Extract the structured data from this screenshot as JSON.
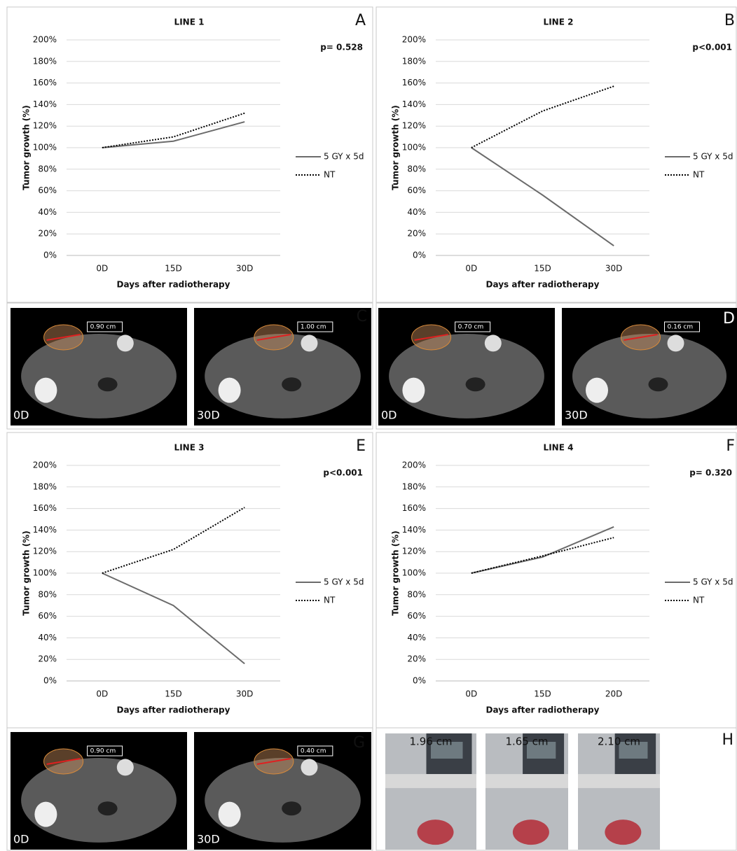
{
  "chart_data": [
    {
      "type": "line",
      "title": "LINE 1",
      "panel_label": "A",
      "annotation": "p= 0.528",
      "xlabel": "Days after radiotherapy",
      "ylabel": "Tumor growth (%)",
      "categories": [
        "0D",
        "15D",
        "30D"
      ],
      "series": [
        {
          "name": "5 GY x 5d",
          "color": "#6b6b6b",
          "line_style": "solid",
          "values": [
            100,
            106,
            124
          ]
        },
        {
          "name": "NT",
          "color": "#000000",
          "line_style": "dotted",
          "values": [
            100,
            110,
            132
          ]
        }
      ],
      "ylim": [
        0,
        200
      ],
      "yticks": [
        {
          "value": 0,
          "label": "0%"
        },
        {
          "value": 20,
          "label": "20%"
        },
        {
          "value": 40,
          "label": "40%"
        },
        {
          "value": 60,
          "label": "60%"
        },
        {
          "value": 80,
          "label": "80%"
        },
        {
          "value": 100,
          "label": "100%"
        },
        {
          "value": 120,
          "label": "120%"
        },
        {
          "value": 140,
          "label": "140%"
        },
        {
          "value": 160,
          "label": "160%"
        },
        {
          "value": 180,
          "label": "180%"
        },
        {
          "value": 200,
          "label": "200%"
        }
      ],
      "grid": true,
      "legend": "right"
    },
    {
      "type": "line",
      "title": "LINE 2",
      "panel_label": "B",
      "annotation": "p<0.001",
      "xlabel": "Days after radiotherapy",
      "ylabel": "Tumor growth (%)",
      "categories": [
        "0D",
        "15D",
        "30D"
      ],
      "series": [
        {
          "name": "5 GY x 5d",
          "color": "#6b6b6b",
          "line_style": "solid",
          "values": [
            100,
            56,
            9
          ]
        },
        {
          "name": "NT",
          "color": "#000000",
          "line_style": "dotted",
          "values": [
            100,
            134,
            157
          ]
        }
      ],
      "ylim": [
        0,
        200
      ],
      "yticks": [
        {
          "value": 0,
          "label": "0%"
        },
        {
          "value": 20,
          "label": "20%"
        },
        {
          "value": 40,
          "label": "40%"
        },
        {
          "value": 60,
          "label": "60%"
        },
        {
          "value": 80,
          "label": "80%"
        },
        {
          "value": 100,
          "label": "100%"
        },
        {
          "value": 120,
          "label": "120%"
        },
        {
          "value": 140,
          "label": "140%"
        },
        {
          "value": 160,
          "label": "160%"
        },
        {
          "value": 180,
          "label": "180%"
        },
        {
          "value": 200,
          "label": "200%"
        }
      ],
      "grid": true,
      "legend": "right"
    },
    {
      "type": "line",
      "title": "LINE 3",
      "panel_label": "E",
      "annotation": "p<0.001",
      "xlabel": "Days after radiotherapy",
      "ylabel": "Tumor growth (%)",
      "categories": [
        "0D",
        "15D",
        "30D"
      ],
      "series": [
        {
          "name": "5 GY x 5d",
          "color": "#6b6b6b",
          "line_style": "solid",
          "values": [
            100,
            70,
            16
          ]
        },
        {
          "name": "NT",
          "color": "#000000",
          "line_style": "dotted",
          "values": [
            100,
            122,
            161
          ]
        }
      ],
      "ylim": [
        0,
        200
      ],
      "yticks": [
        {
          "value": 0,
          "label": "0%"
        },
        {
          "value": 20,
          "label": "20%"
        },
        {
          "value": 40,
          "label": "40%"
        },
        {
          "value": 60,
          "label": "60%"
        },
        {
          "value": 80,
          "label": "80%"
        },
        {
          "value": 100,
          "label": "100%"
        },
        {
          "value": 120,
          "label": "120%"
        },
        {
          "value": 140,
          "label": "140%"
        },
        {
          "value": 160,
          "label": "160%"
        },
        {
          "value": 180,
          "label": "180%"
        },
        {
          "value": 200,
          "label": "200%"
        }
      ],
      "grid": true,
      "legend": "right"
    },
    {
      "type": "line",
      "title": "LINE 4",
      "panel_label": "F",
      "annotation": "p= 0.320",
      "xlabel": "Days after radiotherapy",
      "ylabel": "Tumor growth (%)",
      "categories": [
        "0D",
        "15D",
        "20D"
      ],
      "series": [
        {
          "name": "5 GY x 5d",
          "color": "#6b6b6b",
          "line_style": "solid",
          "values": [
            100,
            115,
            143
          ]
        },
        {
          "name": "NT",
          "color": "#000000",
          "line_style": "dotted",
          "values": [
            100,
            116,
            133
          ]
        }
      ],
      "ylim": [
        0,
        200
      ],
      "yticks": [
        {
          "value": 0,
          "label": "0%"
        },
        {
          "value": 20,
          "label": "20%"
        },
        {
          "value": 40,
          "label": "40%"
        },
        {
          "value": 60,
          "label": "60%"
        },
        {
          "value": 80,
          "label": "80%"
        },
        {
          "value": 100,
          "label": "100%"
        },
        {
          "value": 120,
          "label": "120%"
        },
        {
          "value": 140,
          "label": "140%"
        },
        {
          "value": 160,
          "label": "160%"
        },
        {
          "value": 180,
          "label": "180%"
        },
        {
          "value": 200,
          "label": "200%"
        }
      ],
      "grid": true,
      "legend": "right"
    }
  ],
  "image_panels": [
    {
      "panel_label": "C",
      "images": [
        {
          "label": "0D",
          "measure": "0.90 cm"
        },
        {
          "label": "30D",
          "measure": "1.00 cm"
        }
      ]
    },
    {
      "panel_label": "D",
      "images": [
        {
          "label": "0D",
          "measure": "0.70 cm"
        },
        {
          "label": "30D",
          "measure": "0.16 cm"
        }
      ]
    },
    {
      "panel_label": "G",
      "images": [
        {
          "label": "0D",
          "measure": "0.90 cm"
        },
        {
          "label": "30D",
          "measure": "0.40 cm"
        }
      ]
    },
    {
      "panel_label": "H",
      "images": [
        {
          "measure": "1.96 cm"
        },
        {
          "measure": "1.65 cm"
        },
        {
          "measure": "2.10 cm"
        }
      ]
    }
  ]
}
